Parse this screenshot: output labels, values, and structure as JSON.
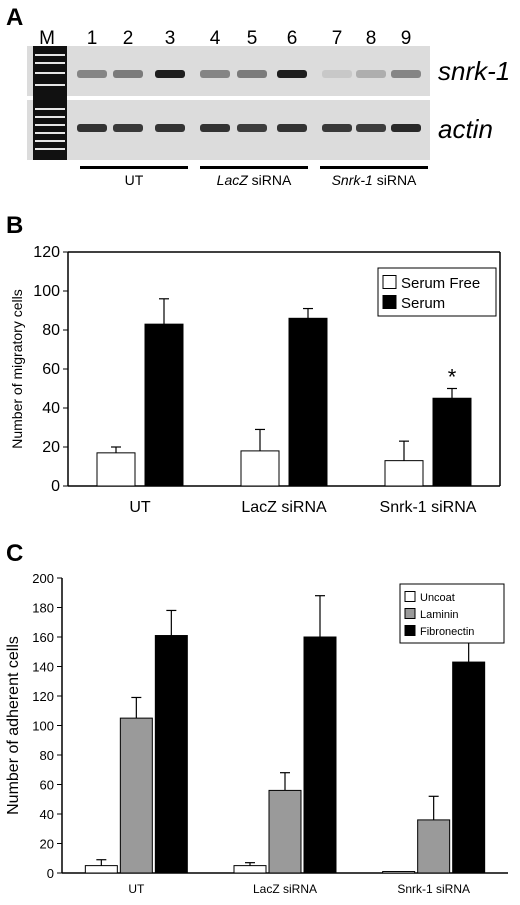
{
  "panel_a": {
    "letter": "A",
    "marker_label": "M",
    "lane_labels": [
      "1",
      "2",
      "3",
      "4",
      "5",
      "6",
      "7",
      "8",
      "9"
    ],
    "gene_top": "snrk-1",
    "gene_bottom": "actin",
    "groups": [
      {
        "prefix": "",
        "suffix": "UT"
      },
      {
        "prefix": "LacZ",
        "suffix": " siRNA"
      },
      {
        "prefix": "Snrk-1",
        "suffix": " siRNA"
      }
    ],
    "snrk_band_intensity": [
      0.45,
      0.5,
      0.95,
      0.45,
      0.5,
      0.95,
      0.12,
      0.25,
      0.45
    ],
    "actin_band_intensity": [
      0.85,
      0.82,
      0.85,
      0.85,
      0.8,
      0.85,
      0.82,
      0.8,
      0.9
    ]
  },
  "panel_b": {
    "letter": "B",
    "colors": {
      "serum_free": "#ffffff",
      "serum": "#000000"
    }
  },
  "panel_c": {
    "letter": "C",
    "colors": {
      "uncoat": "#ffffff",
      "laminin": "#9a9a9a",
      "fibronectin": "#000000"
    }
  },
  "chart_data": [
    {
      "type": "bar",
      "panel": "B",
      "ylabel": "Number of migratory cells",
      "xlabel": "",
      "ylim": [
        0,
        120
      ],
      "yticks": [
        0,
        20,
        40,
        60,
        80,
        100,
        120
      ],
      "categories": [
        "UT",
        "LacZ siRNA",
        "Snrk-1 siRNA"
      ],
      "legend_position": "top-right",
      "series": [
        {
          "name": "Serum Free",
          "values": [
            17,
            18,
            13
          ],
          "errors": [
            3,
            11,
            10
          ]
        },
        {
          "name": "Serum",
          "values": [
            83,
            86,
            45
          ],
          "errors": [
            13,
            5,
            5
          ]
        }
      ],
      "annotations": [
        {
          "category": "Snrk-1 siRNA",
          "series": "Serum",
          "text": "*"
        }
      ]
    },
    {
      "type": "bar",
      "panel": "C",
      "ylabel": "Number of adherent cells",
      "xlabel": "",
      "ylim": [
        0,
        200
      ],
      "yticks": [
        0,
        20,
        40,
        60,
        80,
        100,
        120,
        140,
        160,
        180,
        200
      ],
      "categories": [
        "UT",
        "LacZ siRNA",
        "Snrk-1 siRNA"
      ],
      "legend_position": "top-right",
      "series": [
        {
          "name": "Uncoat",
          "values": [
            5,
            5,
            1
          ],
          "errors": [
            4,
            2,
            0
          ]
        },
        {
          "name": "Laminin",
          "values": [
            105,
            56,
            36
          ],
          "errors": [
            14,
            12,
            16
          ]
        },
        {
          "name": "Fibronectin",
          "values": [
            161,
            160,
            143
          ],
          "errors": [
            17,
            28,
            13
          ]
        }
      ]
    }
  ]
}
